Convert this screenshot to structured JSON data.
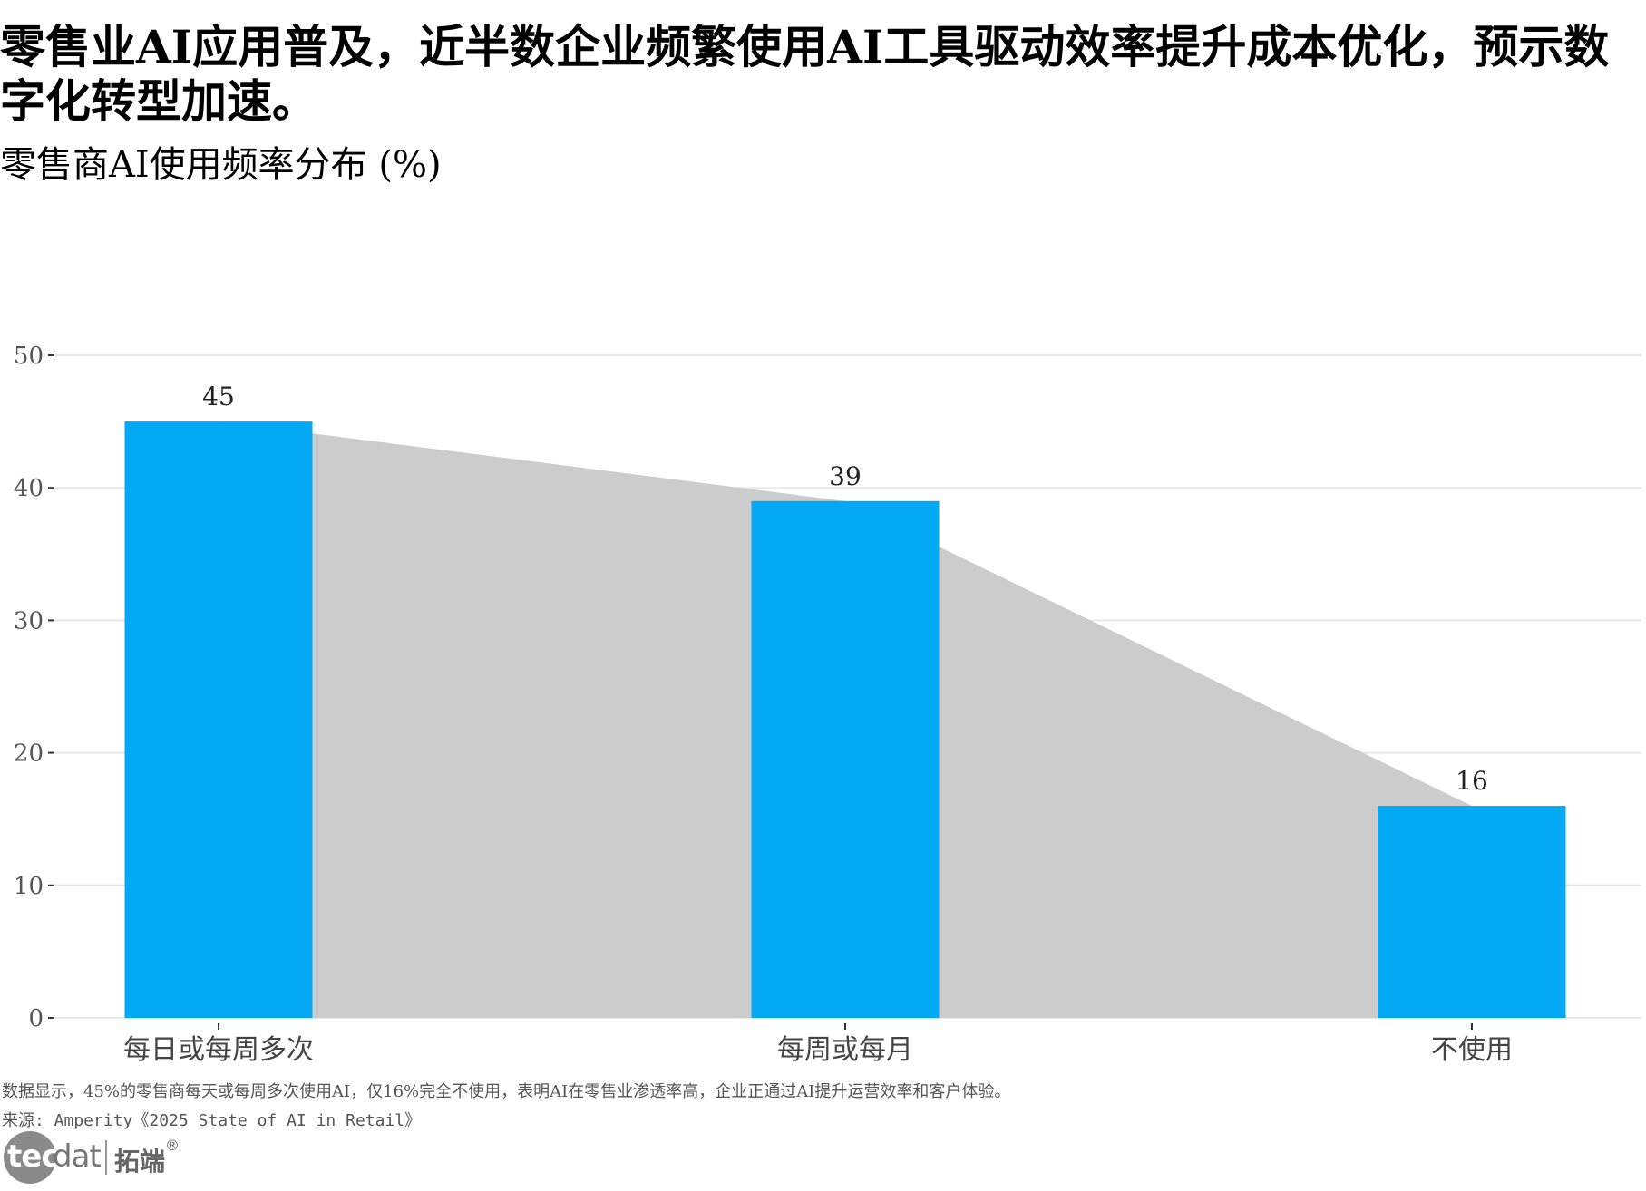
{
  "title": "零售业AI应用普及，近半数企业频繁使用AI工具驱动效率提升成本优化，预示数字化转型加速。",
  "subtitle": "零售商AI使用频率分布 (%)",
  "caption": "数据显示，45%的零售商每天或每周多次使用AI，仅16%完全不使用，表明AI在零售业渗透率高，企业正通过AI提升运营效率和客户体验。",
  "source": "来源: Amperity《2025 State of AI in Retail》",
  "logo": {
    "tec": "tec",
    "dat": "dat",
    "cn": "拓端",
    "reg": "®"
  },
  "colors": {
    "bar": "#03A9F4",
    "area": "#CCCCCC",
    "grid": "#E8E8E8"
  },
  "chart_data": {
    "type": "bar",
    "categories": [
      "每日或每周多次",
      "每周或每月",
      "不使用"
    ],
    "values": [
      45,
      39,
      16
    ],
    "ylim": [
      0,
      50
    ],
    "yticks": [
      0,
      10,
      20,
      30,
      40,
      50
    ],
    "xlabel": "",
    "ylabel": "",
    "grid": true,
    "background_area": true
  }
}
